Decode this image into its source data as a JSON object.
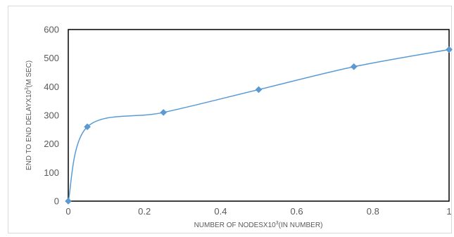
{
  "chart_data": {
    "type": "scatter",
    "title": "",
    "xlabel_parts": [
      "NUMBER OF NODESX10",
      "3",
      "(IN NUMBER)"
    ],
    "ylabel_parts": [
      "END TO END DELAYX10",
      "3",
      "(M SEC)"
    ],
    "xlim": [
      0,
      1
    ],
    "ylim": [
      0,
      600
    ],
    "x_ticks": [
      "0",
      "0.2",
      "0.4",
      "0.6",
      "0.8",
      "1"
    ],
    "y_ticks": [
      "0",
      "100",
      "200",
      "300",
      "400",
      "500",
      "600"
    ],
    "series": [
      {
        "color": "#5b9bd5",
        "marker": "diamond",
        "smooth": true,
        "x": [
          0,
          0.05,
          0.25,
          0.5,
          0.75,
          1
        ],
        "y": [
          0,
          260,
          310,
          390,
          470,
          530
        ]
      }
    ],
    "grid": false,
    "legend": "none"
  }
}
